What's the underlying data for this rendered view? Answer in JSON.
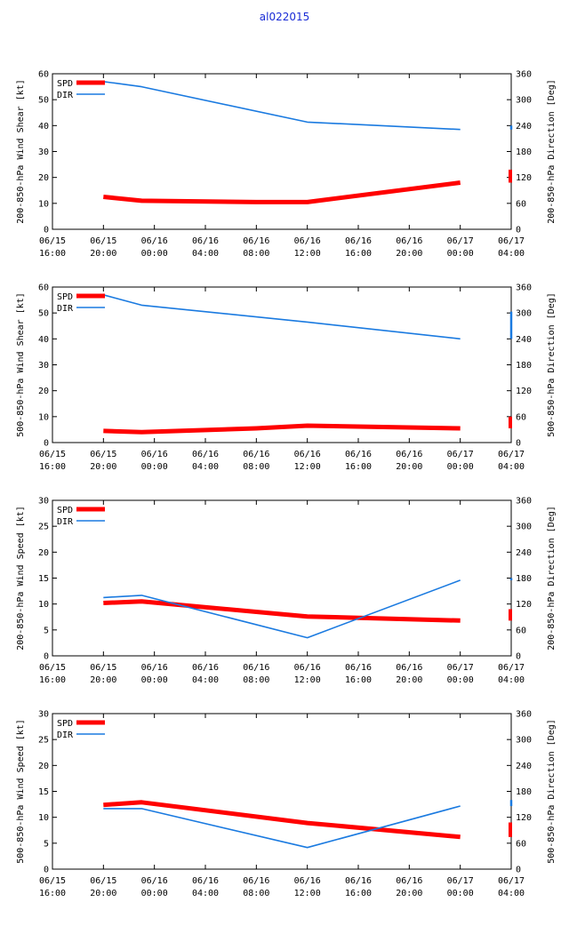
{
  "title": "al022015",
  "colors": {
    "spd": "#ff0000",
    "dir": "#1a7ae0",
    "axis": "#000000"
  },
  "legend": {
    "spd_label": "SPD",
    "dir_label": "DIR"
  },
  "x_ticks": [
    {
      "d": "06/15",
      "t": "16:00"
    },
    {
      "d": "06/15",
      "t": "20:00"
    },
    {
      "d": "06/16",
      "t": "00:00"
    },
    {
      "d": "06/16",
      "t": "04:00"
    },
    {
      "d": "06/16",
      "t": "08:00"
    },
    {
      "d": "06/16",
      "t": "12:00"
    },
    {
      "d": "06/16",
      "t": "16:00"
    },
    {
      "d": "06/16",
      "t": "20:00"
    },
    {
      "d": "06/17",
      "t": "00:00"
    },
    {
      "d": "06/17",
      "t": "04:00"
    }
  ],
  "chart_data": [
    {
      "type": "line",
      "ylabel": "200-850-hPa Wind Shear [kt]",
      "y2label": "200-850-hPa Direction [Deg]",
      "ylim": [
        0,
        60
      ],
      "yticks": [
        0,
        10,
        20,
        30,
        40,
        50,
        60
      ],
      "y2lim": [
        0,
        360
      ],
      "y2ticks": [
        0,
        60,
        120,
        180,
        240,
        300,
        360
      ],
      "xlim": [
        0,
        36
      ],
      "series": [
        {
          "name": "SPD",
          "axis": "left",
          "x": [
            4,
            7,
            16,
            20,
            32
          ],
          "values": [
            12.5,
            11,
            10.5,
            10.5,
            18
          ]
        },
        {
          "name": "DIR",
          "axis": "right",
          "x": [
            4,
            7,
            20,
            32
          ],
          "values": [
            342,
            330,
            248,
            231
          ]
        }
      ],
      "end_marks": {
        "spd": [
          18,
          23
        ],
        "dir": [
          231,
          240
        ]
      }
    },
    {
      "type": "line",
      "ylabel": "500-850-hPa Wind Shear [kt]",
      "y2label": "500-850-hPa Direction [Deg]",
      "ylim": [
        0,
        60
      ],
      "yticks": [
        0,
        10,
        20,
        30,
        40,
        50,
        60
      ],
      "y2lim": [
        0,
        360
      ],
      "y2ticks": [
        0,
        60,
        120,
        180,
        240,
        300,
        360
      ],
      "xlim": [
        0,
        36
      ],
      "series": [
        {
          "name": "SPD",
          "axis": "left",
          "x": [
            4,
            7,
            16,
            20,
            32
          ],
          "values": [
            4.5,
            4,
            5.5,
            6.5,
            5.5
          ]
        },
        {
          "name": "DIR",
          "axis": "right",
          "x": [
            4,
            7,
            20,
            32
          ],
          "values": [
            342,
            318,
            279,
            240
          ]
        }
      ],
      "end_marks": {
        "spd": [
          5.5,
          10
        ],
        "dir": [
          240,
          303
        ]
      }
    },
    {
      "type": "line",
      "ylabel": "200-850-hPa Wind Speed [kt]",
      "y2label": "200-850-hPa Direction [Deg]",
      "ylim": [
        0,
        30
      ],
      "yticks": [
        0,
        5,
        10,
        15,
        20,
        25,
        30
      ],
      "y2lim": [
        0,
        360
      ],
      "y2ticks": [
        0,
        60,
        120,
        180,
        240,
        300,
        360
      ],
      "xlim": [
        0,
        36
      ],
      "series": [
        {
          "name": "SPD",
          "axis": "left",
          "x": [
            4,
            7,
            20,
            32
          ],
          "values": [
            10.2,
            10.5,
            7.6,
            6.8
          ]
        },
        {
          "name": "DIR",
          "axis": "right",
          "x": [
            4,
            7,
            20,
            32
          ],
          "values": [
            135,
            140,
            42,
            175
          ]
        }
      ],
      "end_marks": {
        "spd": [
          6.8,
          9
        ],
        "dir": [
          175,
          180
        ]
      }
    },
    {
      "type": "line",
      "ylabel": "500-850-hPa Wind Speed [kt]",
      "y2label": "500-850-hPa Direction [Deg]",
      "ylim": [
        0,
        30
      ],
      "yticks": [
        0,
        5,
        10,
        15,
        20,
        25,
        30
      ],
      "y2lim": [
        0,
        360
      ],
      "y2ticks": [
        0,
        60,
        120,
        180,
        240,
        300,
        360
      ],
      "xlim": [
        0,
        36
      ],
      "series": [
        {
          "name": "SPD",
          "axis": "left",
          "x": [
            4,
            7,
            20,
            32
          ],
          "values": [
            12.4,
            12.9,
            8.9,
            6.2
          ]
        },
        {
          "name": "DIR",
          "axis": "right",
          "x": [
            4,
            7,
            20,
            32
          ],
          "values": [
            140,
            140,
            50,
            146
          ]
        }
      ],
      "end_marks": {
        "spd": [
          6.2,
          9
        ],
        "dir": [
          146,
          160
        ]
      }
    }
  ]
}
